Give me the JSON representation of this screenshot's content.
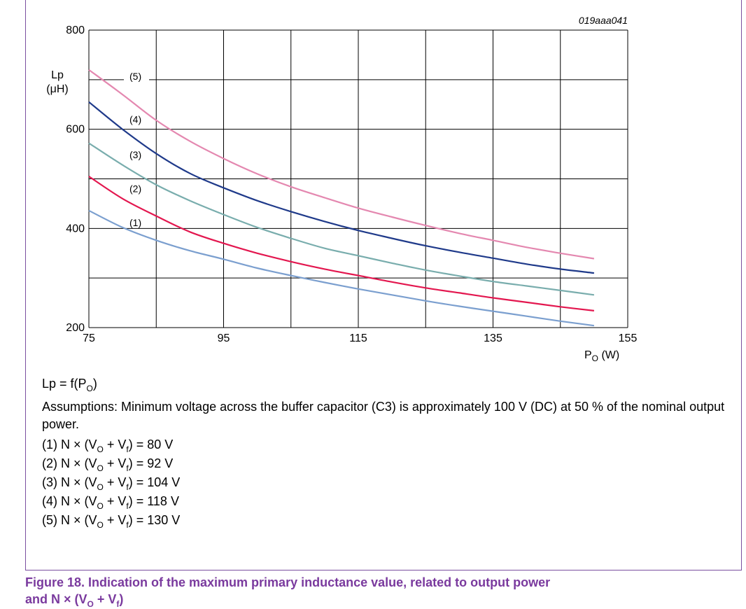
{
  "figure_code": "019aaa041",
  "y_axis_label_line1": "Lp",
  "y_axis_label_line2": "(μH)",
  "x_axis_label": "P",
  "x_axis_label_sub": "O",
  "x_axis_label_unit": " (W)",
  "chart_data": {
    "type": "line",
    "title": "",
    "xlabel": "PO (W)",
    "ylabel": "Lp (μH)",
    "xlim": [
      75,
      155
    ],
    "ylim": [
      200,
      800
    ],
    "xticks": [
      75,
      95,
      115,
      135,
      155
    ],
    "yticks": [
      200,
      400,
      600,
      800
    ],
    "grid": true,
    "x": [
      75,
      80,
      85,
      90,
      95,
      100,
      105,
      110,
      115,
      120,
      125,
      130,
      135,
      140,
      145,
      150
    ],
    "series": [
      {
        "name": "(1)",
        "color": "#7b9fcf",
        "values": [
          436,
          402,
          376,
          355,
          338,
          320,
          305,
          291,
          278,
          266,
          254,
          243,
          233,
          223,
          213,
          204
        ]
      },
      {
        "name": "(2)",
        "color": "#e3174f",
        "values": [
          505,
          460,
          425,
          393,
          370,
          350,
          333,
          318,
          305,
          292,
          280,
          270,
          260,
          251,
          242,
          234
        ]
      },
      {
        "name": "(3)",
        "color": "#79adad",
        "values": [
          572,
          528,
          488,
          456,
          428,
          402,
          380,
          360,
          345,
          330,
          316,
          304,
          293,
          284,
          275,
          266
        ]
      },
      {
        "name": "(4)",
        "color": "#1f3a8a",
        "values": [
          655,
          600,
          551,
          511,
          482,
          456,
          434,
          414,
          396,
          380,
          365,
          352,
          340,
          328,
          318,
          310
        ]
      },
      {
        "name": "(5)",
        "color": "#e488b0",
        "values": [
          720,
          670,
          618,
          576,
          541,
          510,
          484,
          462,
          441,
          423,
          406,
          390,
          376,
          362,
          350,
          339
        ]
      }
    ],
    "curve_labels": [
      "(5)",
      "(4)",
      "(3)",
      "(2)",
      "(1)"
    ]
  },
  "notes": {
    "formula_prefix": "Lp = f(P",
    "formula_sub": "O",
    "formula_suffix": ")",
    "assumptions": "Assumptions: Minimum voltage across the buffer capacitor (C3) is approximately 100 V (DC) at 50 % of the nominal output power.",
    "items": [
      {
        "prefix": "(1) N × (V",
        "sub1": "O",
        "mid": " + V",
        "sub2": "f",
        "suffix": ") = 80 V"
      },
      {
        "prefix": "(2) N × (V",
        "sub1": "O",
        "mid": " + V",
        "sub2": "f",
        "suffix": ") = 92 V"
      },
      {
        "prefix": "(3) N × (V",
        "sub1": "O",
        "mid": " + V",
        "sub2": "f",
        "suffix": ") = 104 V"
      },
      {
        "prefix": "(4) N × (V",
        "sub1": "O",
        "mid": " + V",
        "sub2": "f",
        "suffix": ") = 118 V"
      },
      {
        "prefix": "(5) N × (V",
        "sub1": "O",
        "mid": " + V",
        "sub2": "f",
        "suffix": ") = 130 V"
      }
    ]
  },
  "caption": {
    "line1": "Figure 18.  Indication of the maximum primary inductance value, related to output power",
    "line2_prefix": "and N × (V",
    "line2_sub1": "O",
    "line2_mid": " + V",
    "line2_sub2": "f",
    "line2_suffix": ")"
  }
}
